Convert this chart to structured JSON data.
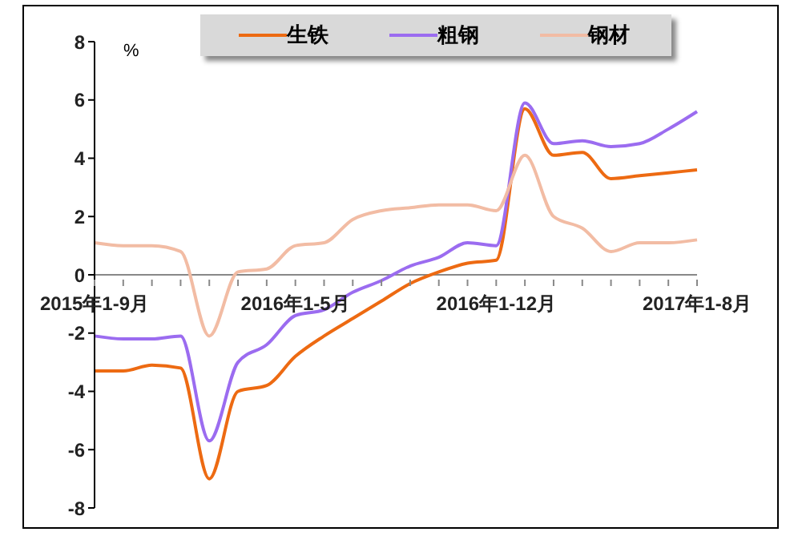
{
  "chart_data": {
    "type": "line",
    "ylabel": "%",
    "categories": [
      "2015年1-9月",
      null,
      null,
      null,
      null,
      null,
      null,
      "2016年1-5月",
      null,
      null,
      null,
      null,
      null,
      null,
      "2016年1-12月",
      null,
      null,
      null,
      null,
      null,
      null,
      "2017年1-8月"
    ],
    "series": [
      {
        "name": "生铁",
        "color": "#ed6a12",
        "values": [
          -3.3,
          -3.3,
          -3.1,
          -3.2,
          -7.0,
          -4.0,
          -3.8,
          -2.8,
          -2.1,
          -1.5,
          -0.9,
          -0.3,
          0.1,
          0.4,
          0.5,
          5.7,
          4.1,
          4.2,
          3.3,
          3.4,
          3.5,
          3.6
        ]
      },
      {
        "name": "粗钢",
        "color": "#9b6cf0",
        "values": [
          -2.1,
          -2.2,
          -2.2,
          -2.1,
          -5.7,
          -3.0,
          -2.4,
          -1.4,
          -1.2,
          -0.6,
          -0.2,
          0.3,
          0.6,
          1.1,
          1.0,
          5.9,
          4.5,
          4.6,
          4.4,
          4.5,
          5.0,
          5.6
        ]
      },
      {
        "name": "钢材",
        "color": "#f2bca4",
        "values": [
          1.1,
          1.0,
          1.0,
          0.8,
          -2.1,
          0.1,
          0.2,
          1.0,
          1.1,
          1.9,
          2.2,
          2.3,
          2.4,
          2.4,
          2.2,
          4.1,
          2.0,
          1.6,
          0.8,
          1.1,
          1.1,
          1.2
        ]
      }
    ],
    "ylim": [
      -8,
      8
    ],
    "yticks": [
      -8,
      -6,
      -4,
      -2,
      0,
      2,
      4,
      6,
      8
    ],
    "grid": false,
    "legend": "top",
    "marker": "none",
    "line_style": "solid"
  }
}
